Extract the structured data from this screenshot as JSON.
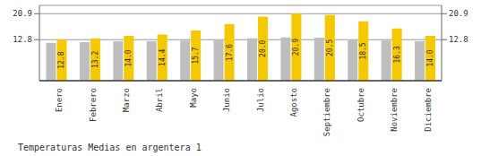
{
  "chart_data": {
    "type": "bar",
    "title": "Temperaturas Medias en argentera 1",
    "categories": [
      "Enero",
      "Febrero",
      "Marzo",
      "Abril",
      "Mayo",
      "Junio",
      "Julio",
      "Agosto",
      "Septiembre",
      "Octubre",
      "Noviembre",
      "Diciembre"
    ],
    "series": [
      {
        "color": "#BEBEBE",
        "values": [
          11.8,
          12.0,
          12.3,
          12.3,
          12.5,
          12.8,
          13.2,
          13.5,
          13.4,
          12.9,
          12.5,
          12.3
        ]
      },
      {
        "color": "#F5C800",
        "values": [
          12.8,
          13.2,
          14.0,
          14.4,
          15.7,
          17.6,
          20.0,
          20.9,
          20.5,
          18.5,
          16.3,
          14.0
        ],
        "data_labels": true,
        "value_labels": [
          "12.8",
          "13.2",
          "14.0",
          "14.4",
          "15.7",
          "17.6",
          "20.0",
          "20.9",
          "20.5",
          "18.5",
          "16.3",
          "14.0"
        ]
      }
    ],
    "ylim": [
      0,
      23.5
    ],
    "yticks": [
      12.8,
      20.9
    ],
    "y2lim": [
      0,
      23.5
    ],
    "y2ticks": [
      12.8,
      20.9
    ],
    "grid": true
  }
}
